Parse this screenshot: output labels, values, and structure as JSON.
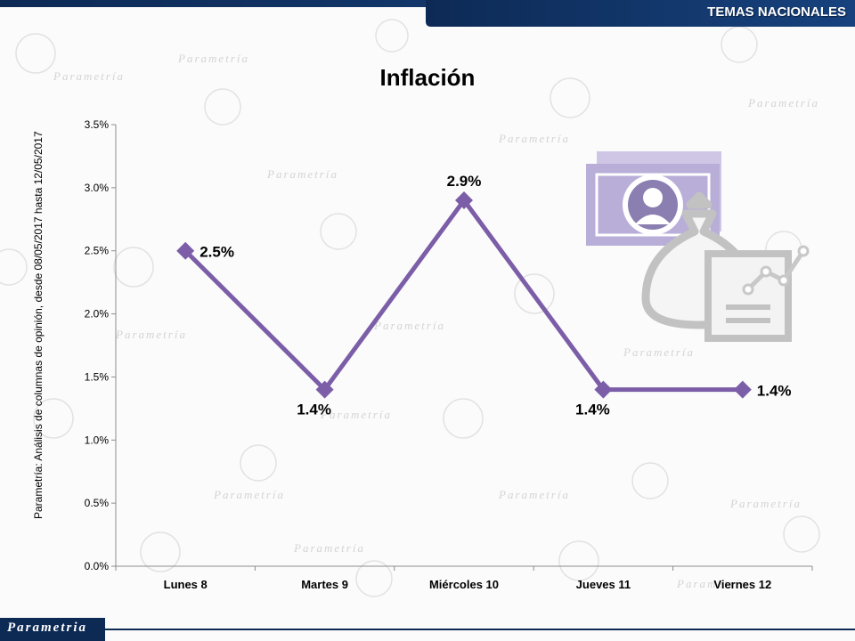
{
  "header": {
    "section_title": "TEMAS NACIONALES"
  },
  "source_note": "Parametría: Análisis de columnas de opinión, desde 08/05/2017 hasta 12/05/2017",
  "logo": {
    "text": "Parametria"
  },
  "colors": {
    "line": "#7b5ea7",
    "header": "#0d2a55",
    "illustration_money": "#b9aed8",
    "illustration_bag": "#c8c8c8"
  },
  "illustration": {
    "icons": [
      "banknote-icon",
      "money-bag-icon",
      "growth-chart-icon"
    ]
  },
  "chart_data": {
    "type": "line",
    "title": "Inflación",
    "categories": [
      "Lunes 8",
      "Martes 9",
      "Miércoles 10",
      "Jueves 11",
      "Viernes 12"
    ],
    "values": [
      2.5,
      1.4,
      2.9,
      1.4,
      1.4
    ],
    "data_labels": [
      "2.5%",
      "1.4%",
      "2.9%",
      "1.4%",
      "1.4%"
    ],
    "yticks": [
      "0.0%",
      "0.5%",
      "1.0%",
      "1.5%",
      "2.0%",
      "2.5%",
      "3.0%",
      "3.5%"
    ],
    "ylim": [
      0,
      3.5
    ],
    "grid": false,
    "legend": "none"
  }
}
